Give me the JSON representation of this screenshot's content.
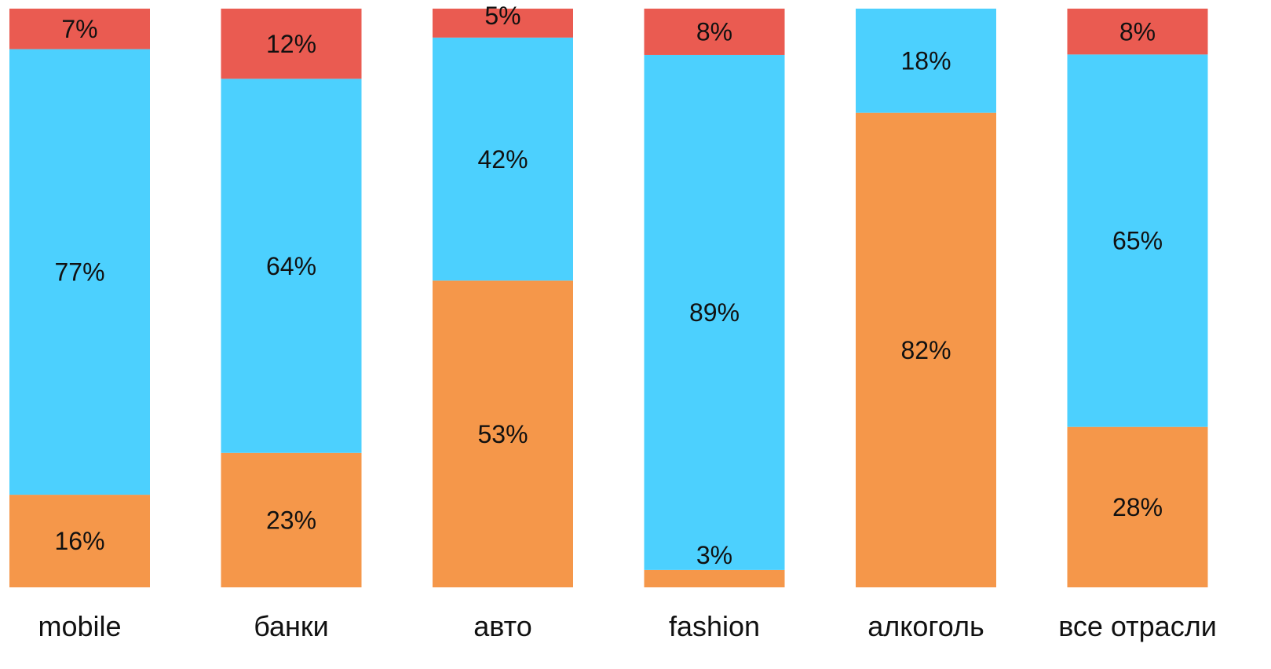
{
  "chart_data": {
    "type": "bar",
    "stacked": true,
    "categories": [
      "mobile",
      "банки",
      "авто",
      "fashion",
      "алкоголь",
      "все отрасли"
    ],
    "series": [
      {
        "color": "#f5974a",
        "values": [
          16,
          23,
          53,
          3,
          82,
          28
        ]
      },
      {
        "color": "#4cd0fe",
        "values": [
          77,
          64,
          42,
          89,
          18,
          65
        ]
      },
      {
        "color": "#ea5b51",
        "values": [
          7,
          12,
          5,
          8,
          0,
          8
        ]
      }
    ],
    "data_labels": [
      [
        "16%",
        "23%",
        "53%",
        "3%",
        "82%",
        "28%"
      ],
      [
        "77%",
        "64%",
        "42%",
        "89%",
        "18%",
        "65%"
      ],
      [
        "7%",
        "12%",
        "5%",
        "8%",
        "",
        "8%"
      ]
    ],
    "title": "",
    "xlabel": "",
    "ylabel": "",
    "ylim": [
      0,
      100
    ],
    "grid": false,
    "legend": "none"
  }
}
